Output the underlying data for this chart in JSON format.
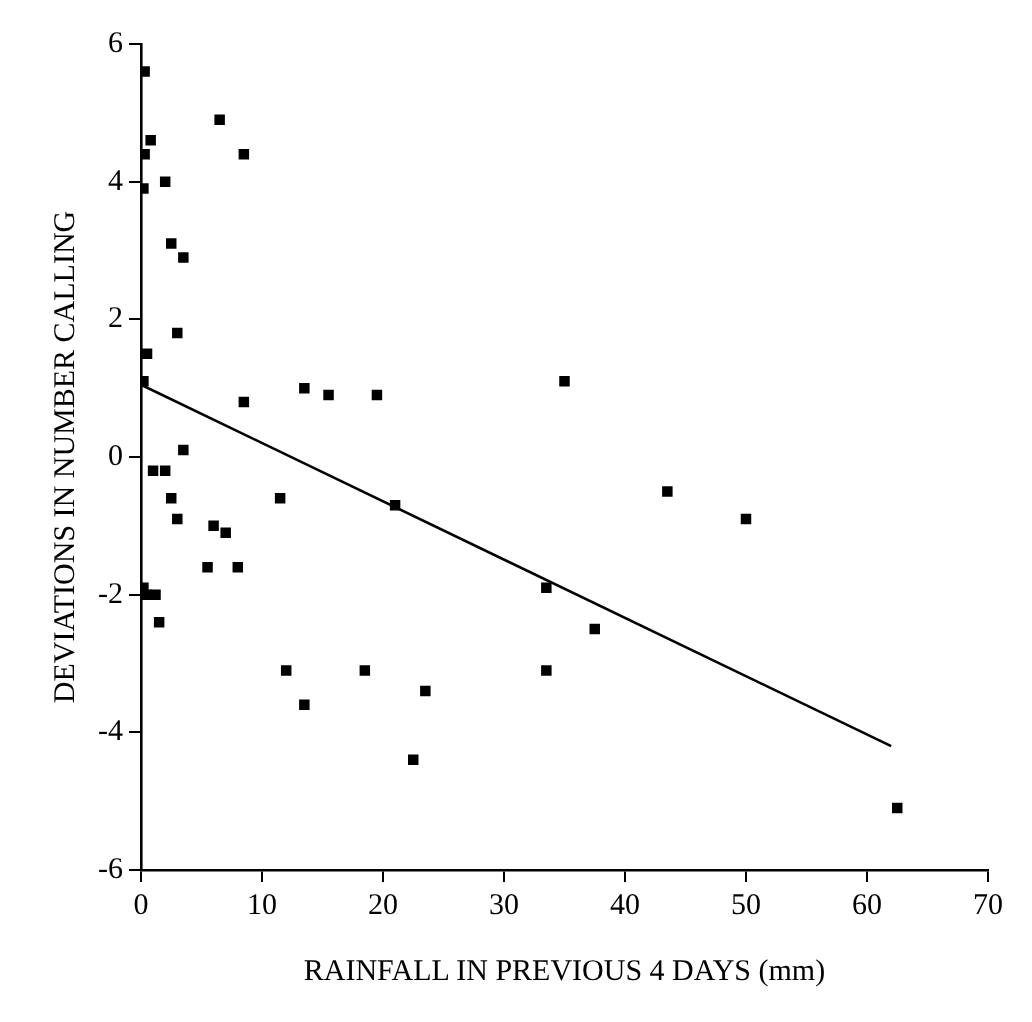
{
  "chart_data": {
    "type": "scatter",
    "xlabel": "RAINFALL IN PREVIOUS 4 DAYS (mm)",
    "ylabel": "DEVIATIONS IN NUMBER CALLING",
    "xlim": [
      0,
      70
    ],
    "xticks": [
      0,
      10,
      20,
      30,
      40,
      50,
      60,
      70
    ],
    "ylim": [
      -6,
      6
    ],
    "yticks": [
      -6,
      -4,
      -2,
      0,
      2,
      4,
      6
    ],
    "grid": false,
    "legend": false,
    "marker": "square",
    "series": [
      {
        "type": "scatter",
        "color": "#000000",
        "x": [
          0.3,
          0.8,
          0.3,
          0.2,
          2,
          6.5,
          8.5,
          2.5,
          3.5,
          3,
          0.5,
          0.2,
          8.5,
          13.5,
          15.5,
          19.5,
          35,
          3.5,
          1,
          2,
          2.5,
          3,
          6,
          7,
          11.5,
          21,
          43.5,
          50,
          5.5,
          8,
          0.2,
          0.5,
          1.2,
          1.5,
          33.5,
          37.5,
          12,
          18.5,
          33.5,
          13.5,
          23.5,
          22.5,
          62.5
        ],
        "values": [
          5.6,
          4.6,
          4.4,
          3.9,
          4.0,
          4.9,
          4.4,
          3.1,
          2.9,
          1.8,
          1.5,
          1.1,
          0.8,
          1.0,
          0.9,
          0.9,
          1.1,
          0.1,
          -0.2,
          -0.2,
          -0.6,
          -0.9,
          -1.0,
          -1.1,
          -0.6,
          -0.7,
          -0.5,
          -0.9,
          -1.6,
          -1.6,
          -1.9,
          -2.0,
          -2.0,
          -2.4,
          -1.9,
          -2.5,
          -3.1,
          -3.1,
          -3.1,
          -3.6,
          -3.4,
          -4.4,
          -5.1
        ]
      },
      {
        "type": "line",
        "color": "#000000",
        "marker": "none",
        "x": [
          0,
          62
        ],
        "values": [
          1.05,
          -4.2
        ]
      }
    ]
  }
}
